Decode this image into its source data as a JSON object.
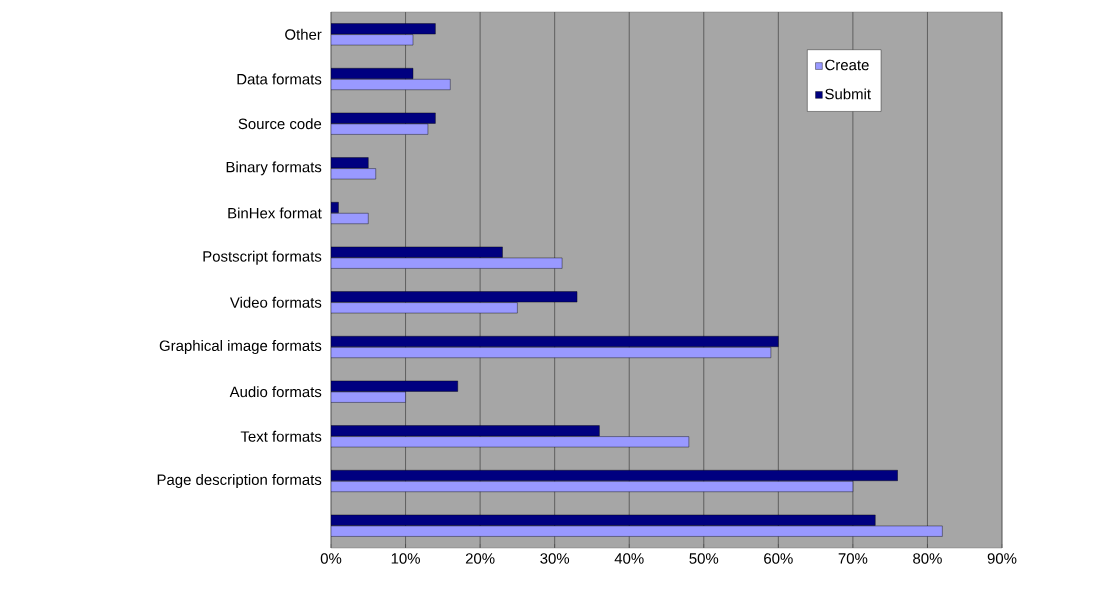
{
  "chart_data": {
    "type": "bar",
    "orientation": "horizontal",
    "categories": [
      "Other",
      "Data formats",
      "Source code",
      "Binary formats",
      "BinHex format",
      "Postscript formats",
      "Video formats",
      "Graphical image formats",
      "Audio formats",
      "Text formats",
      "Page description formats",
      null
    ],
    "series": [
      {
        "name": "Create",
        "color": "#9999ff",
        "values": [
          11,
          16,
          13,
          6,
          5,
          31,
          25,
          59,
          10,
          48,
          70,
          82
        ]
      },
      {
        "name": "Submit",
        "color": "#000080",
        "values": [
          14,
          11,
          14,
          5,
          1,
          23,
          33,
          60,
          17,
          36,
          76,
          73
        ]
      }
    ],
    "xlim": [
      0,
      90
    ],
    "xticks": [
      {
        "value": 0,
        "label": "0%"
      },
      {
        "value": 10,
        "label": "10%"
      },
      {
        "value": 20,
        "label": "20%"
      },
      {
        "value": 30,
        "label": "30%"
      },
      {
        "value": 40,
        "label": "40%"
      },
      {
        "value": 50,
        "label": "50%"
      },
      {
        "value": 60,
        "label": "60%"
      },
      {
        "value": 70,
        "label": "70%"
      },
      {
        "value": 80,
        "label": "80%"
      },
      {
        "value": 90,
        "label": "90%"
      }
    ],
    "grid": "x",
    "legend": "top right"
  }
}
